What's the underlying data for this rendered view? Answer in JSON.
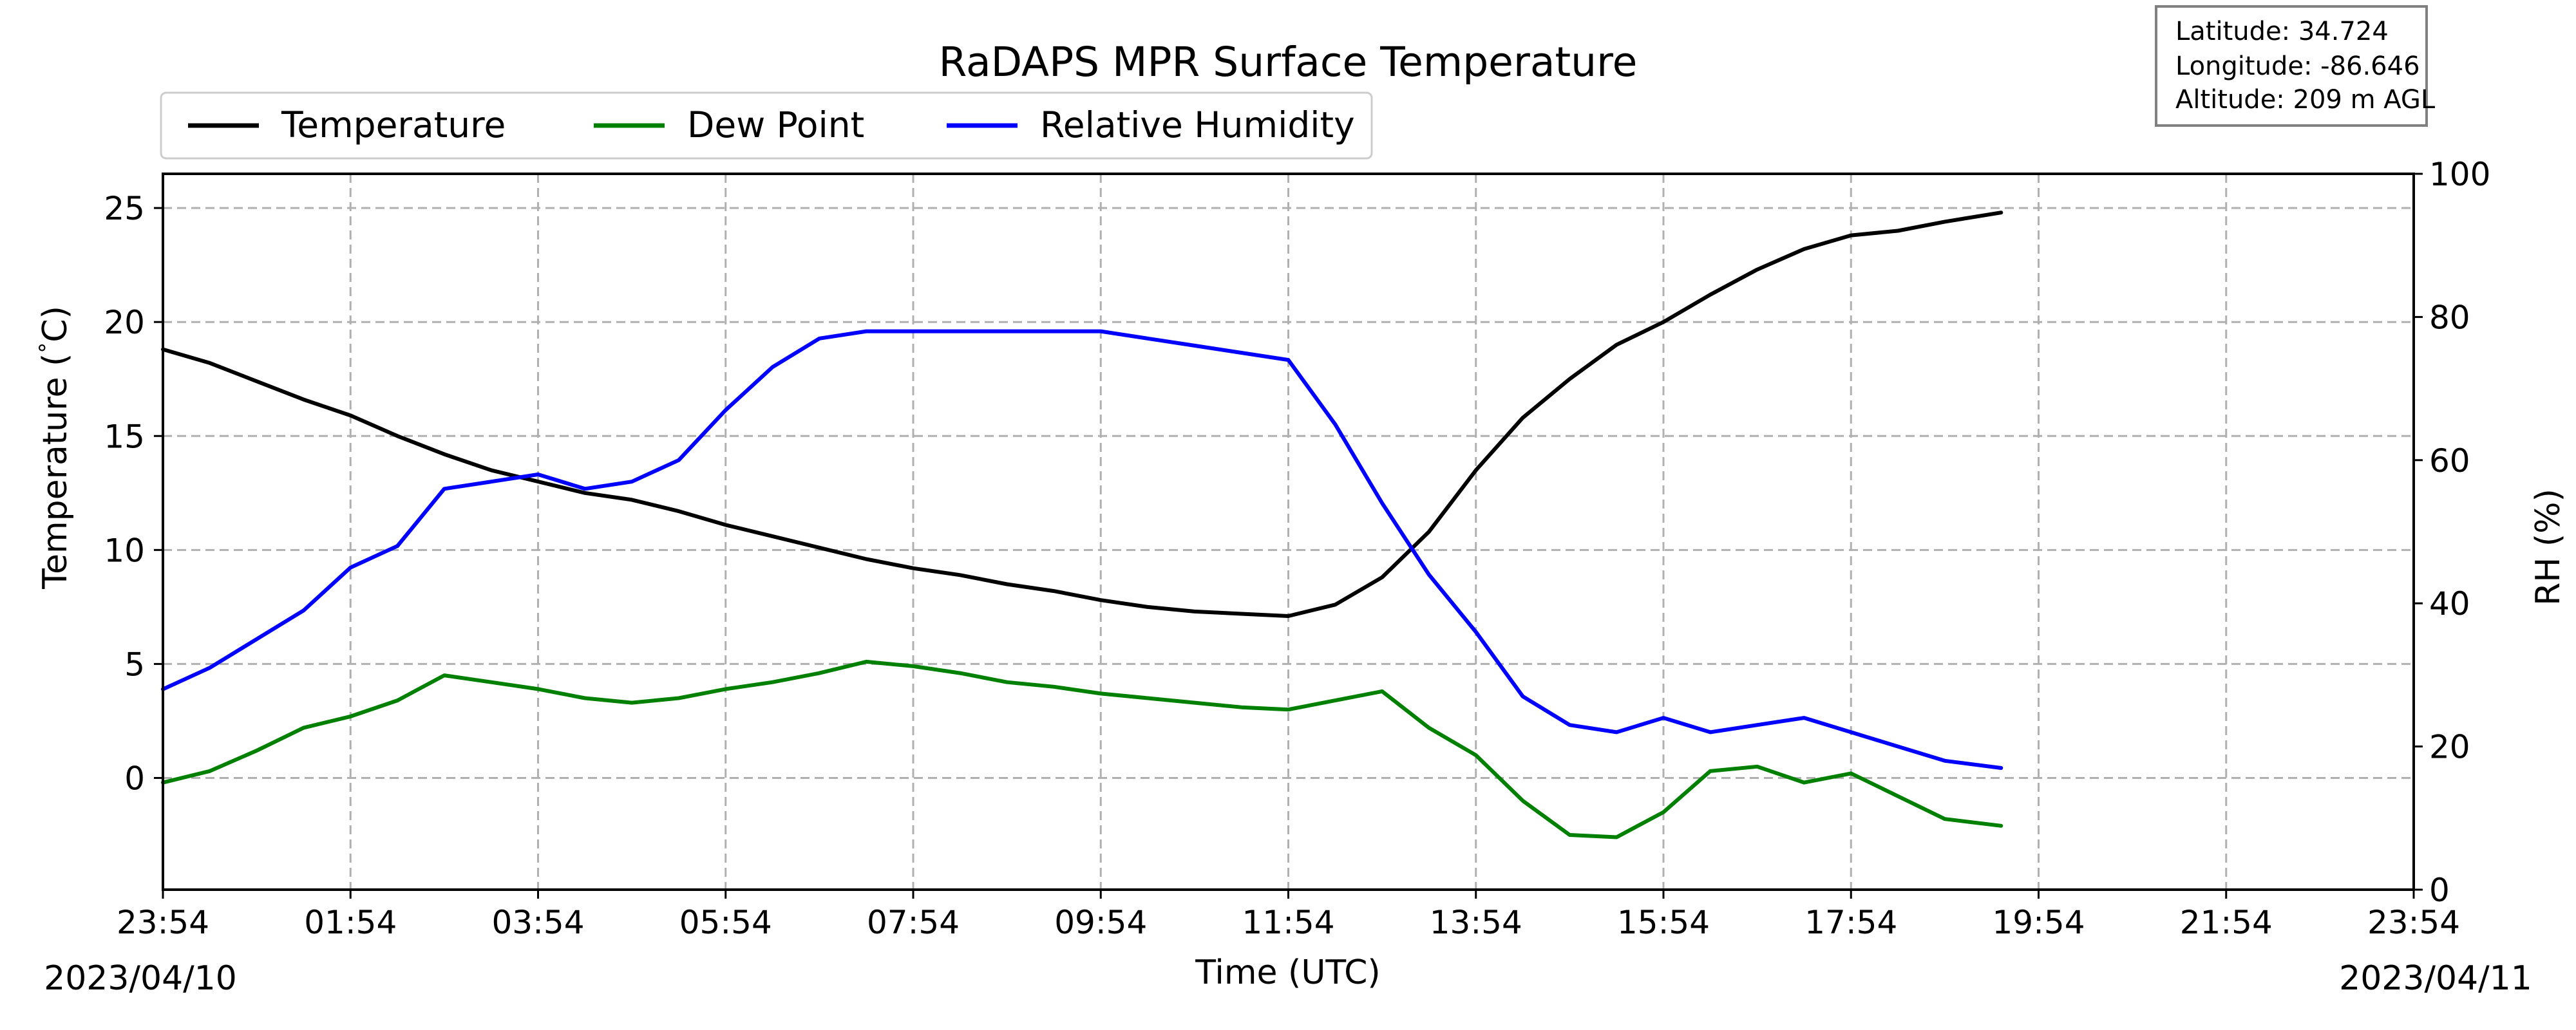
{
  "chart_data": {
    "type": "line",
    "title": "RaDAPS MPR Surface Temperature",
    "xlabel": "Time (UTC)",
    "ylabel": "Temperature ($^\\circ$C)",
    "ylabel_main": "Temperature (",
    "ylabel_deg": "°",
    "ylabel_unit": "C)",
    "y2label": "RH (%)",
    "start_date": "2023/04/10",
    "end_date": "2023/04/11",
    "x_ticks": [
      "23:54",
      "01:54",
      "03:54",
      "05:54",
      "07:54",
      "09:54",
      "11:54",
      "13:54",
      "15:54",
      "17:54",
      "19:54",
      "21:54",
      "23:54"
    ],
    "y_ticks": [
      0,
      5,
      10,
      15,
      20,
      25
    ],
    "y2_ticks": [
      0,
      20,
      40,
      60,
      80,
      100
    ],
    "x_range_hours": [
      0,
      24
    ],
    "ylim": [
      -4.9,
      26.5
    ],
    "y2lim": [
      0,
      100
    ],
    "grid": true,
    "legend_position": "top-left",
    "info_box": {
      "latitude": "Latitude: 34.724",
      "longitude": "Longitude: -86.646",
      "altitude": "Altitude: 209 m AGL"
    },
    "x_hours": [
      0,
      0.5,
      1,
      1.5,
      2,
      2.5,
      3,
      3.5,
      4,
      4.5,
      5,
      5.5,
      6,
      6.5,
      7,
      7.5,
      8,
      8.5,
      9,
      9.5,
      10,
      10.5,
      11,
      11.5,
      12,
      12.5,
      13,
      13.5,
      14,
      14.5,
      15,
      15.5,
      16,
      16.5,
      17,
      17.5,
      18,
      18.5,
      19,
      19.6
    ],
    "series": [
      {
        "name": "Temperature",
        "color": "#000000",
        "axis": "left",
        "values": [
          18.8,
          18.2,
          17.4,
          16.6,
          15.9,
          15.0,
          14.2,
          13.5,
          13.0,
          12.5,
          12.2,
          11.7,
          11.1,
          10.6,
          10.1,
          9.6,
          9.2,
          8.9,
          8.5,
          8.2,
          7.8,
          7.5,
          7.3,
          7.2,
          7.1,
          7.6,
          8.8,
          10.8,
          13.5,
          15.8,
          17.5,
          19.0,
          20.0,
          21.2,
          22.3,
          23.2,
          23.8,
          24.0,
          24.4,
          24.8
        ]
      },
      {
        "name": "Dew Point",
        "color": "#008000",
        "axis": "left",
        "values": [
          -0.2,
          0.3,
          1.2,
          2.2,
          2.7,
          3.4,
          4.5,
          4.2,
          3.9,
          3.5,
          3.3,
          3.5,
          3.9,
          4.2,
          4.6,
          5.1,
          4.9,
          4.6,
          4.2,
          4.0,
          3.7,
          3.5,
          3.3,
          3.1,
          3.0,
          3.4,
          3.8,
          2.2,
          1.0,
          -1.0,
          -2.5,
          -2.6,
          -1.5,
          0.3,
          0.5,
          -0.2,
          0.2,
          -0.8,
          -1.8,
          -2.1
        ]
      },
      {
        "name": "Relative Humidity",
        "color": "#0000ff",
        "axis": "right",
        "values": [
          28,
          31,
          35,
          39,
          45,
          48,
          56,
          57,
          58,
          56,
          57,
          60,
          67,
          73,
          77,
          78,
          78,
          78,
          78,
          78,
          78,
          77,
          76,
          75,
          74,
          65,
          54,
          44,
          36,
          27,
          23,
          22,
          24,
          22,
          23,
          24,
          22,
          20,
          18,
          17
        ]
      }
    ]
  }
}
